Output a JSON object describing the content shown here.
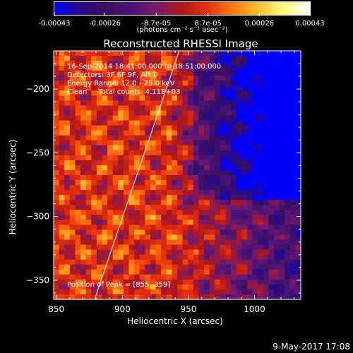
{
  "chart_data": {
    "type": "heatmap",
    "title": "Reconstructed RHESSI Image",
    "xlabel": "Heliocentric X (arcsec)",
    "ylabel": "Heliocentric Y (arcsec)",
    "xlim": [
      848,
      1035
    ],
    "ylim": [
      -365,
      -170
    ],
    "x_ticks": [
      "850",
      "900",
      "950",
      "1000"
    ],
    "x_tick_values": [
      850,
      900,
      950,
      1000
    ],
    "y_ticks": [
      "-200",
      "-250",
      "-300",
      "-350"
    ],
    "y_tick_values": [
      -200,
      -250,
      -300,
      -350
    ],
    "colorbar": {
      "ticks": [
        "-0.00043",
        "-0.00026",
        "-8.7e-05",
        "8.7e-05",
        "0.00026",
        "0.00043"
      ],
      "tick_values": [
        -0.00043,
        -0.00026,
        -8.7e-05,
        8.7e-05,
        0.00026,
        0.00043
      ],
      "range": [
        -0.00043,
        0.00043
      ],
      "units_label": "(photons cm⁻² s⁻¹ asec⁻²)"
    },
    "annotations": [
      "16-Sep-2014 18:41:00.000 to 18:51:00.000",
      "Detectors: 3F 6F 9F, Att 0",
      "Energy Range: 12.0 - 25.0 keV",
      "Clean     Total counts: 4.11E+03"
    ],
    "peak_label": "Position of Peak = [855,-359]",
    "limb_line": {
      "x1": 879,
      "y1": -365,
      "x2": 943,
      "y2": -170
    },
    "grid_cols": 46,
    "grid_rows": 50,
    "grid": false
  },
  "timestamp": "9-May-2017 17:08",
  "colors": {
    "background": "#000000",
    "foreground": "#ffffff",
    "colormap": [
      "#0000ff",
      "#2a0a8a",
      "#3a1060",
      "#4a1478",
      "#7a1a6a",
      "#b01818",
      "#e83010",
      "#ff7a10",
      "#ffc030",
      "#ffff80",
      "#ffffff"
    ]
  }
}
